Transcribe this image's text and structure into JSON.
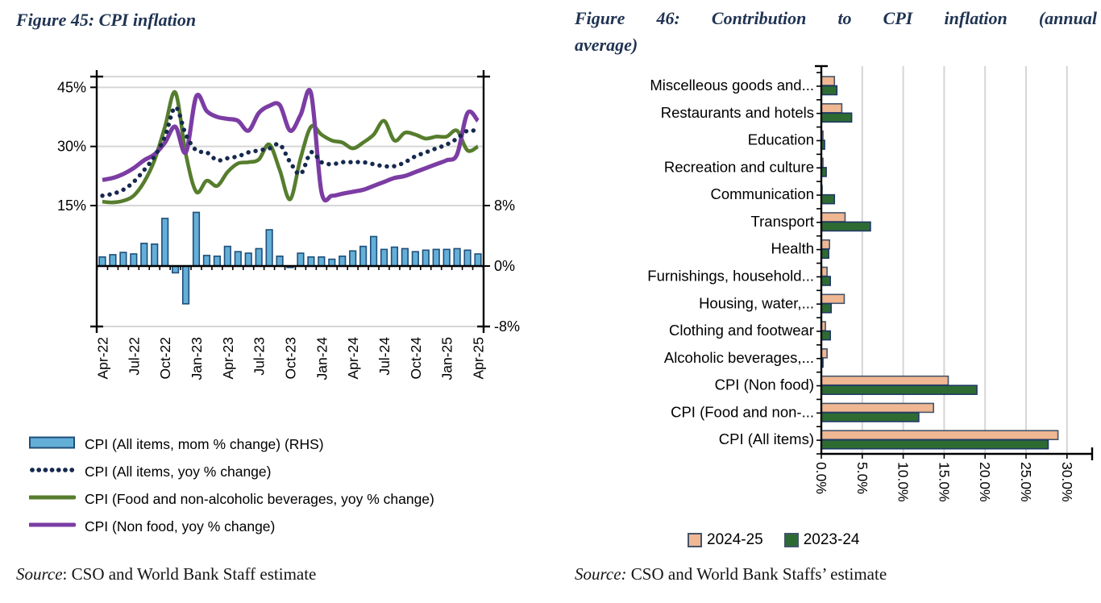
{
  "figure45": {
    "title": "Figure 45: CPI inflation",
    "source_prefix": "Source",
    "source_rest": ": CSO and World Bank Staff estimate"
  },
  "figure46": {
    "title_lines": [
      "Figure 46: Contribution to CPI inflation (annual",
      "average)"
    ],
    "source_prefix": "Source:",
    "source_rest": " CSO and World Bank Staffs’ estimate"
  },
  "chart_data": [
    {
      "figure": "45",
      "type": "combo: monthly bars (right axis) + yoy lines (left axis)",
      "months": [
        "Apr-22",
        "May-22",
        "Jun-22",
        "Jul-22",
        "Aug-22",
        "Sep-22",
        "Oct-22",
        "Nov-22",
        "Dec-22",
        "Jan-23",
        "Feb-23",
        "Mar-23",
        "Apr-23",
        "May-23",
        "Jun-23",
        "Jul-23",
        "Aug-23",
        "Sep-23",
        "Oct-23",
        "Nov-23",
        "Dec-23",
        "Jan-24",
        "Feb-24",
        "Mar-24",
        "Apr-24",
        "May-24",
        "Jun-24",
        "Jul-24",
        "Aug-24",
        "Sep-24",
        "Oct-24",
        "Nov-24",
        "Dec-24",
        "Jan-25",
        "Feb-25",
        "Mar-25",
        "Apr-25"
      ],
      "x_tick_every": 3,
      "left_axis_ticks": [
        "45%",
        "30%",
        "15%"
      ],
      "right_axis_ticks": [
        "8%",
        "0%",
        "-8%"
      ],
      "left_axis_values": [
        45,
        30,
        15
      ],
      "right_axis_values": [
        8,
        0,
        -8
      ],
      "series": [
        {
          "name": "CPI (All items, mom % change) (RHS)",
          "type": "bar",
          "axis": "right",
          "swatch": "bar",
          "color": "#63AFD8",
          "border": "#1F4E79",
          "values": [
            1.2,
            1.5,
            1.8,
            1.6,
            3.0,
            2.9,
            6.3,
            -0.9,
            -5.0,
            7.1,
            1.4,
            1.3,
            2.6,
            1.9,
            1.7,
            2.3,
            4.8,
            1.3,
            -0.2,
            1.7,
            1.2,
            1.2,
            0.9,
            1.3,
            2.0,
            2.6,
            3.9,
            2.2,
            2.5,
            2.3,
            1.9,
            2.1,
            2.2,
            2.2,
            2.3,
            2.1,
            1.6
          ]
        },
        {
          "name": "CPI (All items, yoy % change)",
          "type": "dotted-line",
          "axis": "left",
          "swatch": "dots",
          "color": "#16294F",
          "values": [
            17.5,
            18,
            19,
            21,
            24,
            27.5,
            32.5,
            40,
            33,
            29,
            28.5,
            26.5,
            27,
            27.5,
            28.5,
            29,
            29.5,
            30.5,
            26,
            23,
            28.5,
            26,
            25.5,
            26,
            26,
            26,
            25.5,
            25,
            25,
            26,
            27.5,
            28.5,
            29.5,
            30.5,
            32,
            34,
            33.8
          ]
        },
        {
          "name": "CPI (Food and non-alcoholic beverages, yoy % change)",
          "type": "line",
          "axis": "left",
          "swatch": "line",
          "color": "#567D2D",
          "values": [
            16,
            15.8,
            16.2,
            17.5,
            21,
            26.5,
            35,
            43.7,
            28,
            18.5,
            21.3,
            20,
            23.5,
            25.7,
            26,
            26.7,
            30.5,
            24,
            16.6,
            27,
            35,
            33,
            31.5,
            31,
            29.5,
            31,
            33,
            36.5,
            31.5,
            33.5,
            33,
            32,
            32.5,
            32.5,
            34,
            29,
            30
          ]
        },
        {
          "name": "CPI (Non food, yoy % change)",
          "type": "line",
          "axis": "left",
          "swatch": "line",
          "color": "#7B3DA3",
          "values": [
            21.5,
            22,
            23,
            24.5,
            26.5,
            28,
            31,
            35,
            28.5,
            42.7,
            39,
            37.5,
            37,
            36.5,
            34,
            38.5,
            40.3,
            40.5,
            34,
            38,
            43.5,
            18.5,
            17.5,
            18,
            18.5,
            19,
            20,
            21,
            22,
            22.5,
            23.5,
            24.5,
            25.5,
            26.5,
            28,
            38.5,
            36.5
          ]
        }
      ]
    },
    {
      "figure": "46",
      "type": "horizontal grouped bar",
      "categories": [
        "Miscelleous goods and...",
        "Restaurants and hotels",
        "Education",
        "Recreation and culture",
        "Communication",
        "Transport",
        "Health",
        "Furnishings, household...",
        "Housing, water,...",
        "Clothing and footwear",
        "Alcoholic beverages,...",
        "CPI (Non food)",
        "CPI (Food and non-...",
        "CPI (All items)"
      ],
      "x_tick_labels": [
        "0.0%",
        "5.0%",
        "10.0%",
        "15.0%",
        "20.0%",
        "25.0%",
        "30.0%"
      ],
      "xlim": [
        0,
        30
      ],
      "grid": true,
      "legend_position": "bottom",
      "series": [
        {
          "name": "2024-25",
          "color": "#F0B793",
          "border": "#44546A",
          "values": [
            1.6,
            2.5,
            0.2,
            0.2,
            0.1,
            2.9,
            1.0,
            0.7,
            2.8,
            0.5,
            0.7,
            15.5,
            13.7,
            28.9
          ]
        },
        {
          "name": "2023-24",
          "color": "#2E6B33",
          "border": "#1F3864",
          "values": [
            1.9,
            3.7,
            0.4,
            0.6,
            1.6,
            6.0,
            0.9,
            1.1,
            1.2,
            1.1,
            0.2,
            19.0,
            11.9,
            27.7
          ]
        }
      ]
    }
  ]
}
